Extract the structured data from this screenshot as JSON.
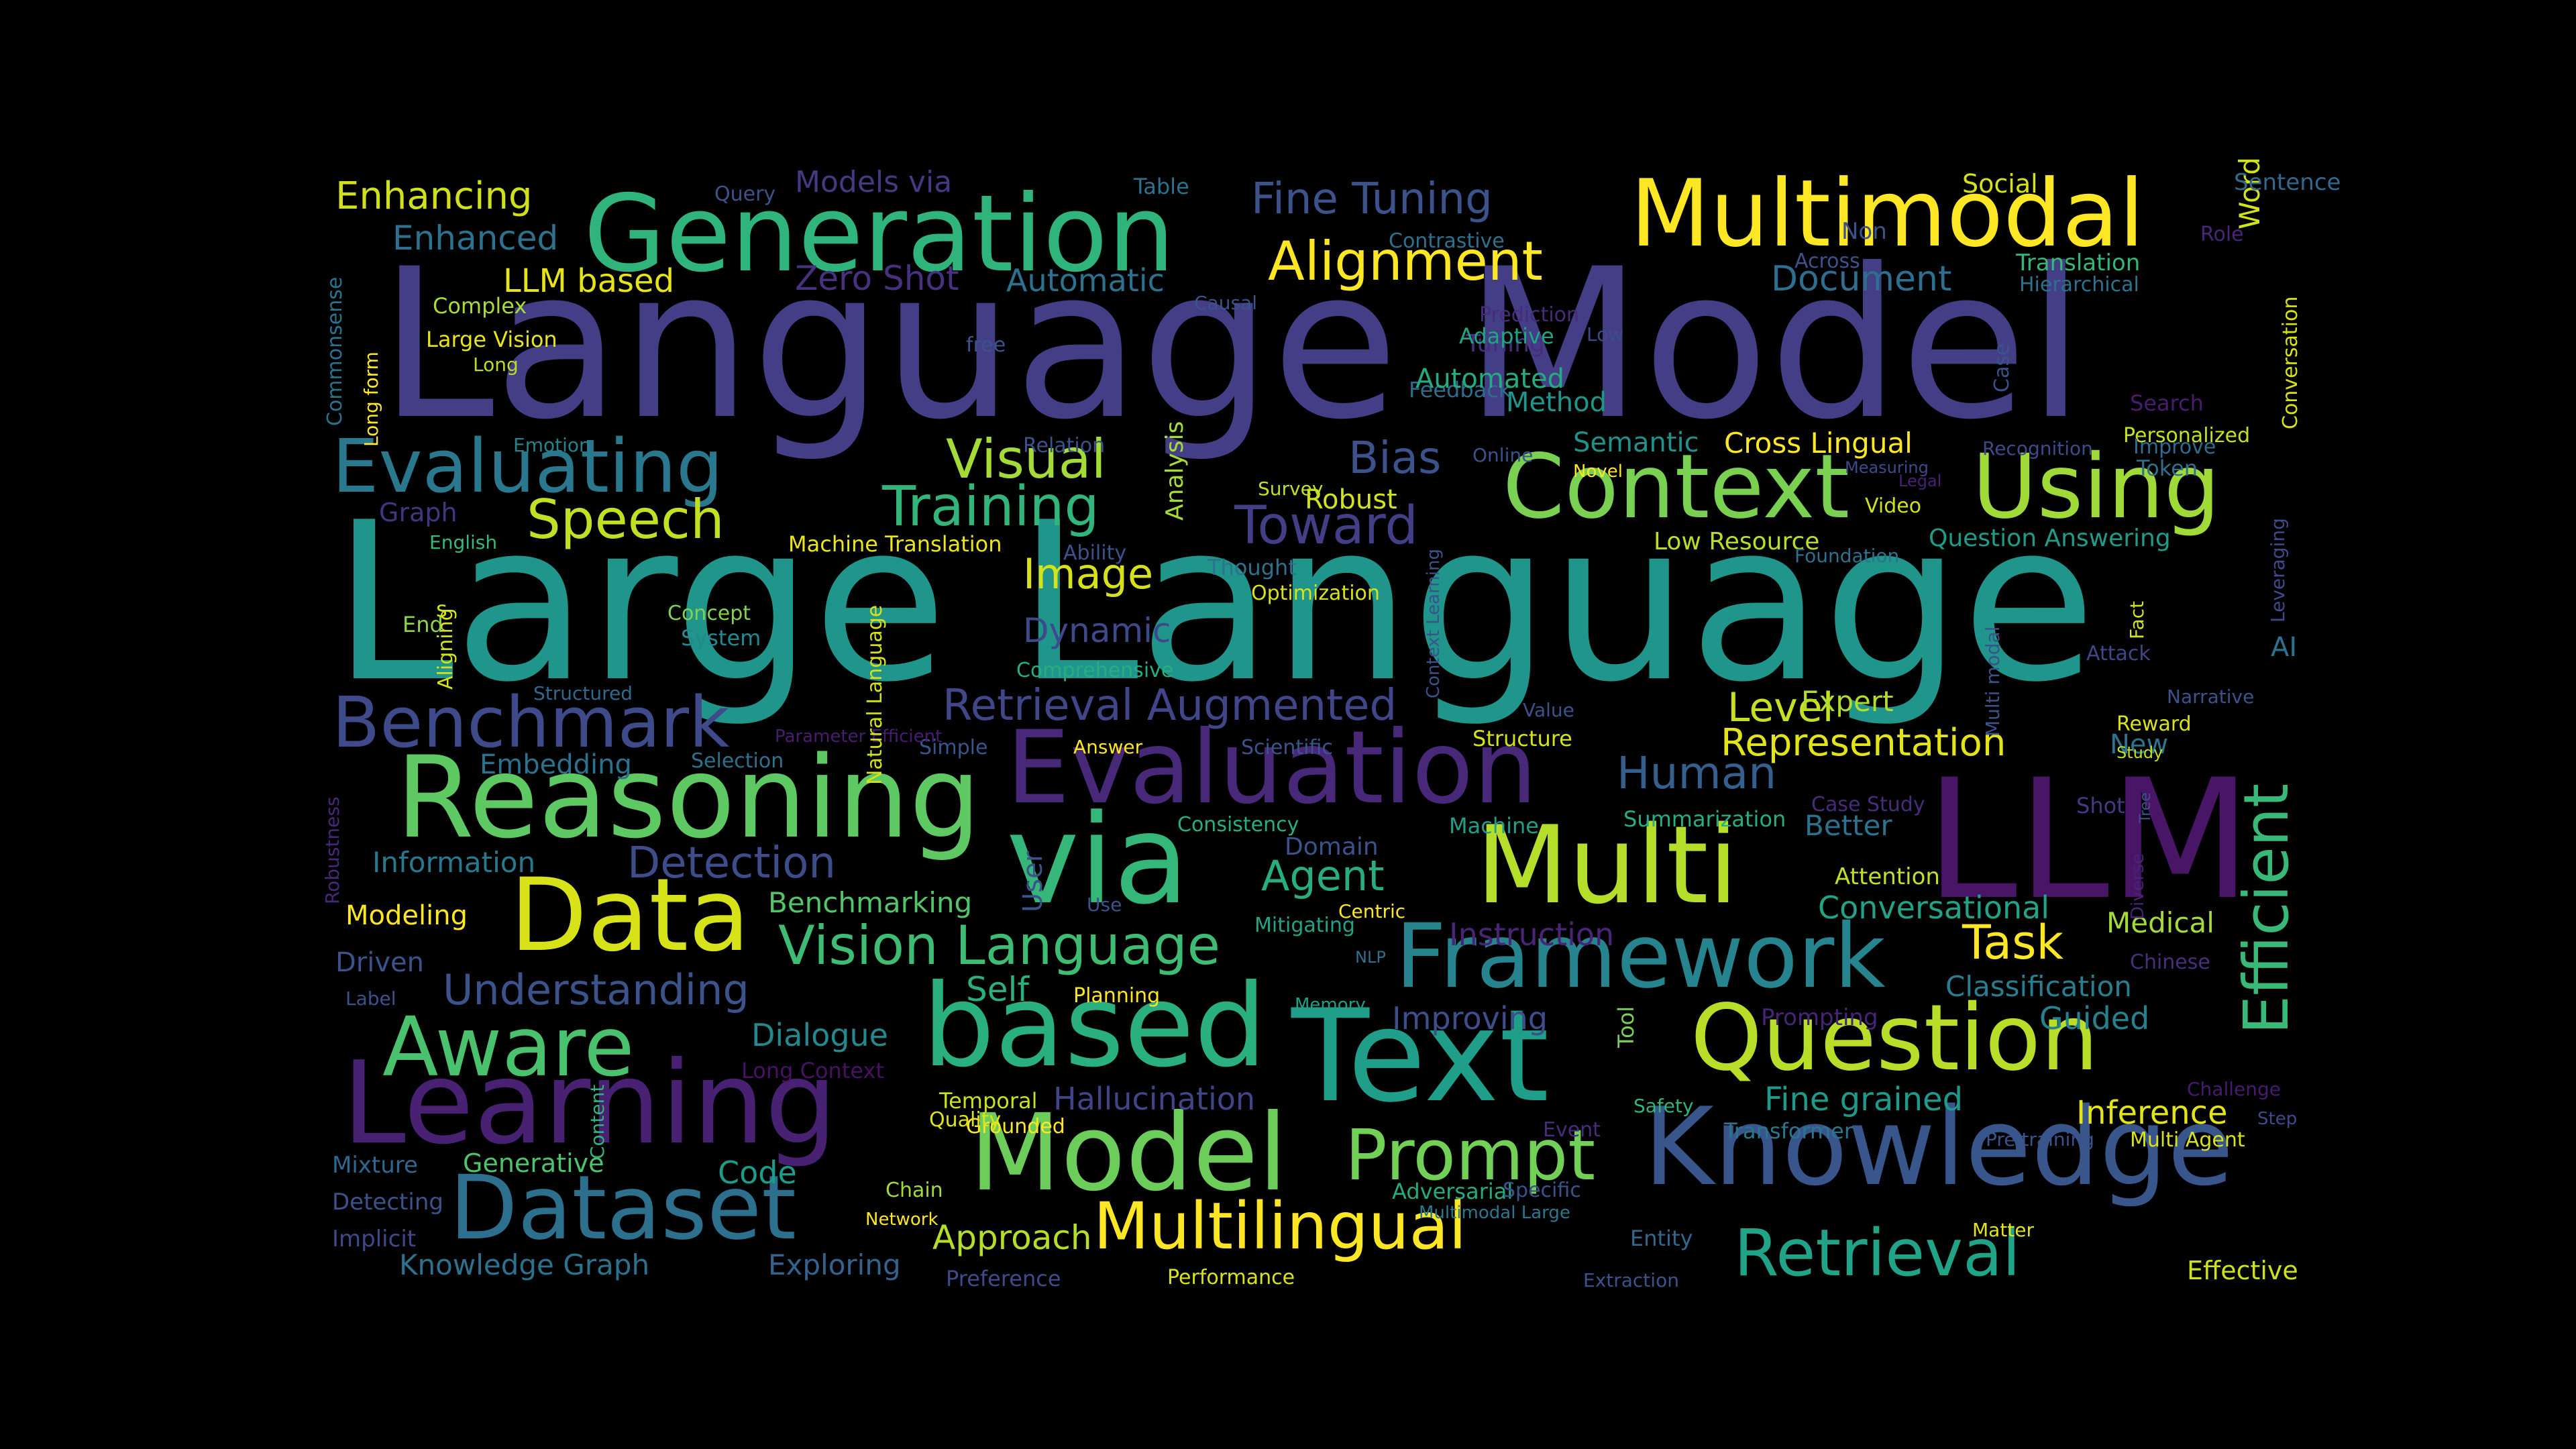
{
  "background": "#000000",
  "words": [
    {
      "text": "Language Model",
      "color": "#433e85"
    },
    {
      "text": "Large Language",
      "color": "#1f958b"
    },
    {
      "text": "LLM",
      "color": "#481567"
    },
    {
      "text": "Generation",
      "color": "#2fb47c"
    },
    {
      "text": "Multimodal",
      "color": "#fde725"
    },
    {
      "text": "via",
      "color": "#35b779"
    },
    {
      "text": "Text",
      "color": "#1f9e89"
    },
    {
      "text": "Evaluation",
      "color": "#482878"
    },
    {
      "text": "Reasoning",
      "color": "#5ec962"
    },
    {
      "text": "Multi",
      "color": "#b5de2b"
    },
    {
      "text": "based",
      "color": "#2ab07f"
    },
    {
      "text": "Knowledge",
      "color": "#39568c"
    },
    {
      "text": "Context",
      "color": "#7ad151"
    },
    {
      "text": "Using",
      "color": "#a0da39"
    },
    {
      "text": "Data",
      "color": "#d8e219"
    },
    {
      "text": "Learning",
      "color": "#482173"
    },
    {
      "text": "Model",
      "color": "#6ccd5a"
    },
    {
      "text": "Framework",
      "color": "#25848e"
    },
    {
      "text": "Question",
      "color": "#b8de29"
    },
    {
      "text": "Dataset",
      "color": "#2d708e"
    },
    {
      "text": "Aware",
      "color": "#4ac16d"
    },
    {
      "text": "Evaluating",
      "color": "#2a788e"
    },
    {
      "text": "Benchmark",
      "color": "#3e4a89"
    },
    {
      "text": "Prompt",
      "color": "#73d056"
    },
    {
      "text": "Multilingual",
      "color": "#fde725"
    },
    {
      "text": "Retrieval",
      "color": "#20a386"
    },
    {
      "text": "Efficient",
      "color": "#38b977"
    },
    {
      "text": "Vision Language",
      "color": "#3fbc73"
    },
    {
      "text": "Alignment",
      "color": "#fde725"
    },
    {
      "text": "Speech",
      "color": "#c2df23"
    },
    {
      "text": "Training",
      "color": "#31b57b"
    },
    {
      "text": "Visual",
      "color": "#a5db36"
    },
    {
      "text": "Toward",
      "color": "#433e85"
    },
    {
      "text": "Bias",
      "color": "#3b528b"
    },
    {
      "text": "Fine Tuning",
      "color": "#3b528b"
    },
    {
      "text": "Enhancing",
      "color": "#d0e11c"
    },
    {
      "text": "Enhanced",
      "color": "#2c728e"
    },
    {
      "text": "LLM based",
      "color": "#e5e419"
    },
    {
      "text": "Retrieval Augmented",
      "color": "#404688"
    },
    {
      "text": "Human",
      "color": "#355f8d"
    },
    {
      "text": "Agent",
      "color": "#27ad81"
    },
    {
      "text": "Task",
      "color": "#fde725"
    },
    {
      "text": "Image",
      "color": "#d5e21a"
    },
    {
      "text": "Detection",
      "color": "#3e4c8a"
    },
    {
      "text": "Understanding",
      "color": "#3b528b"
    },
    {
      "text": "Representation",
      "color": "#e2e418"
    },
    {
      "text": "Level",
      "color": "#c8e020"
    },
    {
      "text": "Document",
      "color": "#2e6e8e"
    },
    {
      "text": "Zero Shot",
      "color": "#46327e"
    },
    {
      "text": "Automatic",
      "color": "#2c728e"
    },
    {
      "text": "Models via",
      "color": "#443983"
    },
    {
      "text": "Dynamic",
      "color": "#3e4989"
    },
    {
      "text": "Self",
      "color": "#2ab07f"
    },
    {
      "text": "Dialogue",
      "color": "#23898e"
    },
    {
      "text": "Benchmarking",
      "color": "#52c569"
    },
    {
      "text": "Hallucination",
      "color": "#414487"
    },
    {
      "text": "Inference",
      "color": "#e2e418"
    },
    {
      "text": "Fine grained",
      "color": "#1f9a8a"
    },
    {
      "text": "Code",
      "color": "#1e9b8a"
    },
    {
      "text": "Approach",
      "color": "#b5de2b"
    },
    {
      "text": "Improving",
      "color": "#3d4e8a"
    },
    {
      "text": "Instruction",
      "color": "#482576"
    },
    {
      "text": "Conversational",
      "color": "#20a386"
    },
    {
      "text": "Classification",
      "color": "#287d8e"
    },
    {
      "text": "Guided",
      "color": "#27808e"
    },
    {
      "text": "Medical",
      "color": "#a5db36"
    },
    {
      "text": "Expert",
      "color": "#b2dd2d"
    },
    {
      "text": "Better",
      "color": "#2d718e"
    },
    {
      "text": "New",
      "color": "#2c738e"
    },
    {
      "text": "Cross Lingual",
      "color": "#fde725"
    },
    {
      "text": "Semantic",
      "color": "#21918c"
    },
    {
      "text": "Method",
      "color": "#1f968b"
    },
    {
      "text": "Robust",
      "color": "#d2e21b"
    },
    {
      "text": "Low Resource",
      "color": "#bade28"
    },
    {
      "text": "Question Answering",
      "color": "#1e9c89"
    },
    {
      "text": "Personalized",
      "color": "#c5e021"
    },
    {
      "text": "Word",
      "color": "#d2e21b"
    },
    {
      "text": "Information",
      "color": "#2a788e"
    },
    {
      "text": "Embedding",
      "color": "#2c728e"
    },
    {
      "text": "Modeling",
      "color": "#fde725"
    },
    {
      "text": "Driven",
      "color": "#3a538b"
    },
    {
      "text": "Generative",
      "color": "#4ec36b"
    },
    {
      "text": "Knowledge Graph",
      "color": "#2c728e"
    },
    {
      "text": "Exploring",
      "color": "#33638d"
    },
    {
      "text": "Implicit",
      "color": "#3f4889"
    },
    {
      "text": "Detecting",
      "color": "#3b528b"
    },
    {
      "text": "Mixture",
      "color": "#31678e"
    },
    {
      "text": "Complex",
      "color": "#a8db34"
    },
    {
      "text": "Large Vision",
      "color": "#e7e419"
    },
    {
      "text": "Long",
      "color": "#bade28"
    },
    {
      "text": "Graph",
      "color": "#453581"
    },
    {
      "text": "English",
      "color": "#38b977"
    },
    {
      "text": "Emotion",
      "color": "#25838e"
    },
    {
      "text": "End",
      "color": "#8bd646"
    },
    {
      "text": "Concept",
      "color": "#81d34d"
    },
    {
      "text": "System",
      "color": "#23898e"
    },
    {
      "text": "Structured",
      "color": "#31688e"
    },
    {
      "text": "Selection",
      "color": "#2c728e"
    },
    {
      "text": "Simple",
      "color": "#39568c"
    },
    {
      "text": "Answer",
      "color": "#fde725"
    },
    {
      "text": "Scientific",
      "color": "#3b528b"
    },
    {
      "text": "Structure",
      "color": "#d5e21a"
    },
    {
      "text": "Consistency",
      "color": "#28ae80"
    },
    {
      "text": "Machine",
      "color": "#1f9e89"
    },
    {
      "text": "Domain",
      "color": "#3b528b"
    },
    {
      "text": "Machine Translation",
      "color": "#ece51b"
    },
    {
      "text": "Thought",
      "color": "#2c728e"
    },
    {
      "text": "Optimization",
      "color": "#d8e219"
    },
    {
      "text": "Comprehensive",
      "color": "#27ad81"
    },
    {
      "text": "Survey",
      "color": "#bddf26"
    },
    {
      "text": "Video",
      "color": "#d0e11c"
    },
    {
      "text": "Summarization",
      "color": "#26ad81"
    },
    {
      "text": "Attention",
      "color": "#c0df25"
    },
    {
      "text": "Centric",
      "color": "#fde725"
    },
    {
      "text": "Mitigating",
      "color": "#20a386"
    },
    {
      "text": "NLP",
      "color": "#2c728e"
    },
    {
      "text": "Planning",
      "color": "#fde725"
    },
    {
      "text": "Memory",
      "color": "#1f9f88"
    },
    {
      "text": "Prompting",
      "color": "#482475"
    },
    {
      "text": "Tool",
      "color": "#7ad151"
    },
    {
      "text": "Safety",
      "color": "#2fb47c"
    },
    {
      "text": "Transformer",
      "color": "#2a768e"
    },
    {
      "text": "Event",
      "color": "#472c7a"
    },
    {
      "text": "Adversarial",
      "color": "#25ab82"
    },
    {
      "text": "Multimodal Large",
      "color": "#2a788e"
    },
    {
      "text": "Specific",
      "color": "#3b528b"
    },
    {
      "text": "Entity",
      "color": "#31688e"
    },
    {
      "text": "Extraction",
      "color": "#3b528b"
    },
    {
      "text": "Performance",
      "color": "#dae319"
    },
    {
      "text": "Preference",
      "color": "#3e4a89"
    },
    {
      "text": "Network",
      "color": "#fde725"
    },
    {
      "text": "Chain",
      "color": "#a2da37"
    },
    {
      "text": "Grounded",
      "color": "#fde725"
    },
    {
      "text": "Quality",
      "color": "#dde318"
    },
    {
      "text": "Temporal",
      "color": "#c8e020"
    },
    {
      "text": "Long Context",
      "color": "#471164"
    },
    {
      "text": "Matter",
      "color": "#e2e418"
    },
    {
      "text": "Pre training",
      "color": "#3b528b"
    },
    {
      "text": "Multi Agent",
      "color": "#d8e219"
    },
    {
      "text": "Effective",
      "color": "#cde11d"
    },
    {
      "text": "Challenge",
      "color": "#481a6c"
    },
    {
      "text": "Step",
      "color": "#3e4a89"
    },
    {
      "text": "Chinese",
      "color": "#46307e"
    },
    {
      "text": "Diverse",
      "color": "#482475"
    },
    {
      "text": "Tree",
      "color": "#3b528b"
    },
    {
      "text": "Study",
      "color": "#c0df25"
    },
    {
      "text": "Case Study",
      "color": "#472c7a"
    },
    {
      "text": "Shot",
      "color": "#453882"
    },
    {
      "text": "Reward",
      "color": "#d8e219"
    },
    {
      "text": "Narrative",
      "color": "#3b528b"
    },
    {
      "text": "Attack",
      "color": "#3f4788"
    },
    {
      "text": "AI",
      "color": "#2c728e"
    },
    {
      "text": "Fact",
      "color": "#d2e21b"
    },
    {
      "text": "Leveraging",
      "color": "#3e4a89"
    },
    {
      "text": "Token",
      "color": "#2c728e"
    },
    {
      "text": "Improve",
      "color": "#2f6c8e"
    },
    {
      "text": "Recognition",
      "color": "#3e4a89"
    },
    {
      "text": "Search",
      "color": "#481d6f"
    },
    {
      "text": "Legal",
      "color": "#482173"
    },
    {
      "text": "Measuring",
      "color": "#3e4a89"
    },
    {
      "text": "Novel",
      "color": "#fde725"
    },
    {
      "text": "Online",
      "color": "#3b528b"
    },
    {
      "text": "Feedback",
      "color": "#2f6c8e"
    },
    {
      "text": "Automated",
      "color": "#25ab82"
    },
    {
      "text": "Tuning",
      "color": "#472d7b"
    },
    {
      "text": "Adaptive",
      "color": "#21a685"
    },
    {
      "text": "Low",
      "color": "#3e4a89"
    },
    {
      "text": "Prediction",
      "color": "#472c7a"
    },
    {
      "text": "Causal",
      "color": "#3b528b"
    },
    {
      "text": "Contrastive",
      "color": "#2c728e"
    },
    {
      "text": "Across",
      "color": "#3b528b"
    },
    {
      "text": "Non",
      "color": "#3b528b"
    },
    {
      "text": "Role",
      "color": "#482677"
    },
    {
      "text": "Sentence",
      "color": "#31688e"
    },
    {
      "text": "Social",
      "color": "#d5e21a"
    },
    {
      "text": "Translation",
      "color": "#35b779"
    },
    {
      "text": "Hierarchical",
      "color": "#2c728e"
    },
    {
      "text": "Conversation",
      "color": "#d8e219"
    },
    {
      "text": "Case",
      "color": "#3b528b"
    },
    {
      "text": "Table",
      "color": "#2c728e"
    },
    {
      "text": "Query",
      "color": "#3b528b"
    },
    {
      "text": "free",
      "color": "#3b528b"
    },
    {
      "text": "Commonsense",
      "color": "#2c728e"
    },
    {
      "text": "Long form",
      "color": "#fde725"
    },
    {
      "text": "Relation",
      "color": "#3b528b"
    },
    {
      "text": "Analysis",
      "color": "#a5db36"
    },
    {
      "text": "Ability",
      "color": "#3b528b"
    },
    {
      "text": "Parameter Efficient",
      "color": "#481d6f"
    },
    {
      "text": "Value",
      "color": "#3b528b"
    },
    {
      "text": "Context Learning",
      "color": "#3b528b"
    },
    {
      "text": "Natural Language",
      "color": "#d5e21a"
    },
    {
      "text": "Aligning",
      "color": "#d2e21b"
    },
    {
      "text": "s",
      "color": "#d2e21b"
    },
    {
      "text": "Robustness",
      "color": "#482878"
    },
    {
      "text": "Label",
      "color": "#3b528b"
    },
    {
      "text": "Content",
      "color": "#2fb47c"
    },
    {
      "text": "User",
      "color": "#3b528b"
    },
    {
      "text": "Use",
      "color": "#3b528b"
    },
    {
      "text": "Multi modal",
      "color": "#3b528b"
    },
    {
      "text": "Foundation",
      "color": "#2c728e"
    }
  ]
}
